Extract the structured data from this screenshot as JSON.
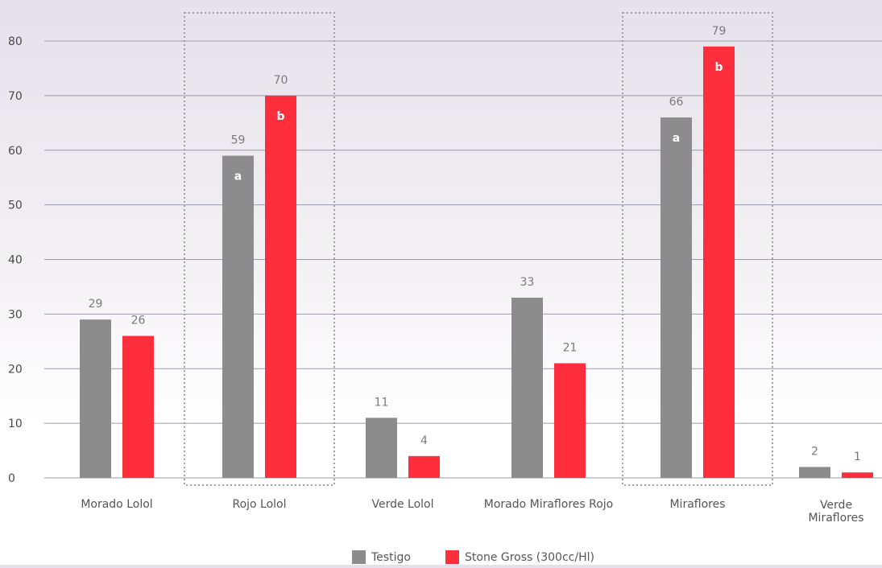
{
  "chart_data": {
    "type": "bar",
    "title": "",
    "xlabel": "",
    "ylabel": "",
    "ylim": [
      0,
      80
    ],
    "yticks": [
      0,
      10,
      20,
      30,
      40,
      50,
      60,
      70,
      80
    ],
    "grid": true,
    "legend_position": "bottom-center",
    "categories": [
      "Morado Lolol",
      "Rojo Lolol",
      "Verde Lolol",
      "Morado Miraflores Rojo",
      "Miraflores",
      "Verde\nMiraflores"
    ],
    "series": [
      {
        "name": "Testigo",
        "color": "#8c8c8c",
        "values": [
          29,
          59,
          11,
          33,
          66,
          2
        ],
        "value_labels": [
          "29",
          "59",
          "11",
          "33",
          "66",
          "2"
        ],
        "letters": [
          "",
          "a",
          "",
          "",
          "a",
          ""
        ]
      },
      {
        "name": "Stone Gross (300cc/Hl)",
        "color": "#ff2e3d",
        "values": [
          26,
          70,
          4,
          21,
          79,
          1
        ],
        "value_labels": [
          "26",
          "70",
          "4",
          "21",
          "79",
          "1"
        ],
        "letters": [
          "",
          "b",
          "",
          "",
          "b",
          ""
        ]
      }
    ],
    "highlighted_categories": [
      "Rojo Lolol",
      "Miraflores"
    ],
    "gridline_color": "#9a9aa8",
    "highlight_box_color": "#a0a0a0"
  }
}
